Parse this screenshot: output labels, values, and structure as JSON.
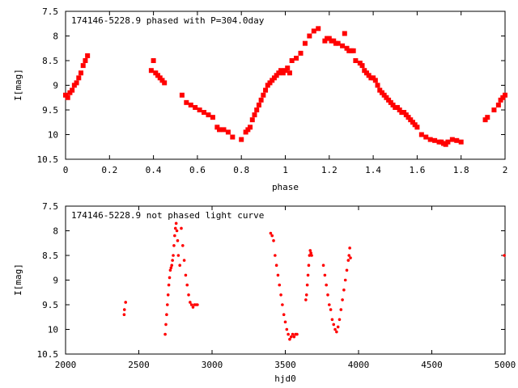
{
  "chart_data": [
    {
      "type": "scatter",
      "title": "174146-5228.9 phased with P=304.0day",
      "xlabel": "phase",
      "ylabel": "I[mag]",
      "xlim": [
        0,
        2
      ],
      "ylim": [
        10.5,
        7.5
      ],
      "y_inverted": true,
      "xticks": [
        "0",
        "0.2",
        "0.4",
        "0.6",
        "0.8",
        "1",
        "1.2",
        "1.4",
        "1.6",
        "1.8",
        "2"
      ],
      "yticks": [
        "7.5",
        "8",
        "8.5",
        "9",
        "9.5",
        "10",
        "10.5"
      ],
      "grid": false,
      "marker_color": "#ff0000",
      "series": [
        {
          "x": [
            0.0,
            0.01,
            0.02,
            0.03,
            0.04,
            0.05,
            0.06,
            0.07,
            0.08,
            0.09,
            0.1,
            0.39,
            0.4,
            0.41,
            0.42,
            0.43,
            0.44,
            0.45,
            0.53,
            0.55,
            0.57,
            0.59,
            0.61,
            0.63,
            0.65,
            0.67,
            0.69,
            0.7,
            0.72,
            0.74,
            0.76,
            0.8,
            0.82,
            0.83,
            0.84,
            0.85,
            0.86,
            0.87,
            0.88,
            0.89,
            0.9,
            0.91,
            0.92,
            0.93,
            0.94,
            0.95,
            0.96,
            0.97,
            0.98,
            0.99,
            1.0,
            1.01,
            1.02,
            1.03,
            1.05,
            1.07,
            1.09,
            1.11,
            1.13,
            1.15,
            1.18,
            1.19,
            1.2,
            1.21,
            1.22,
            1.23,
            1.24,
            1.26,
            1.27,
            1.28,
            1.29,
            1.3,
            1.31,
            1.32,
            1.34,
            1.35,
            1.36,
            1.37,
            1.38,
            1.39,
            1.4,
            1.41,
            1.42,
            1.43,
            1.44,
            1.45,
            1.46,
            1.47,
            1.48,
            1.49,
            1.5,
            1.51,
            1.52,
            1.53,
            1.54,
            1.55,
            1.56,
            1.57,
            1.58,
            1.59,
            1.6,
            1.62,
            1.64,
            1.66,
            1.68,
            1.7,
            1.71,
            1.72,
            1.73,
            1.74,
            1.76,
            1.78,
            1.8,
            1.91,
            1.92,
            1.95,
            1.97,
            1.98,
            1.99,
            2.0
          ],
          "y": [
            9.2,
            9.25,
            9.15,
            9.1,
            9.0,
            8.95,
            8.85,
            8.75,
            8.6,
            8.5,
            8.4,
            8.7,
            8.5,
            8.75,
            8.8,
            8.85,
            8.9,
            8.95,
            9.2,
            9.35,
            9.4,
            9.45,
            9.5,
            9.55,
            9.6,
            9.65,
            9.85,
            9.9,
            9.9,
            9.95,
            10.05,
            10.1,
            9.95,
            9.9,
            9.85,
            9.7,
            9.6,
            9.5,
            9.4,
            9.3,
            9.2,
            9.1,
            9.0,
            8.95,
            8.9,
            8.85,
            8.8,
            8.75,
            8.7,
            8.75,
            8.7,
            8.65,
            8.75,
            8.5,
            8.45,
            8.35,
            8.15,
            8.0,
            7.9,
            7.85,
            8.1,
            8.05,
            8.05,
            8.1,
            8.1,
            8.15,
            8.15,
            8.2,
            7.95,
            8.25,
            8.3,
            8.3,
            8.3,
            8.5,
            8.55,
            8.6,
            8.7,
            8.75,
            8.8,
            8.85,
            8.85,
            8.9,
            9.0,
            9.1,
            9.15,
            9.2,
            9.25,
            9.3,
            9.35,
            9.4,
            9.45,
            9.45,
            9.5,
            9.55,
            9.55,
            9.6,
            9.65,
            9.7,
            9.75,
            9.8,
            9.85,
            10.0,
            10.05,
            10.1,
            10.12,
            10.15,
            10.15,
            10.18,
            10.2,
            10.15,
            10.1,
            10.12,
            10.15,
            9.7,
            9.65,
            9.5,
            9.4,
            9.3,
            9.25,
            9.2
          ]
        }
      ]
    },
    {
      "type": "scatter",
      "title": "174146-5228.9 not phased light curve",
      "xlabel": "hjd0",
      "ylabel": "I[mag]",
      "xlim": [
        2000,
        5000
      ],
      "ylim": [
        10.5,
        7.5
      ],
      "y_inverted": true,
      "xticks": [
        "2000",
        "2500",
        "3000",
        "3500",
        "4000",
        "4500",
        "5000"
      ],
      "yticks": [
        "7.5",
        "8",
        "8.5",
        "9",
        "9.5",
        "10",
        "10.5"
      ],
      "grid": false,
      "marker_color": "#ff0000",
      "series": [
        {
          "x": [
            2400,
            2402,
            2410,
            2680,
            2685,
            2690,
            2695,
            2700,
            2705,
            2710,
            2715,
            2720,
            2725,
            2730,
            2735,
            2740,
            2745,
            2750,
            2755,
            2760,
            2765,
            2770,
            2780,
            2790,
            2800,
            2810,
            2820,
            2830,
            2840,
            2850,
            2860,
            2870,
            2880,
            2890,
            2900,
            3400,
            3410,
            3420,
            3430,
            3440,
            3450,
            3460,
            3470,
            3480,
            3490,
            3500,
            3510,
            3520,
            3530,
            3540,
            3550,
            3560,
            3570,
            3580,
            3640,
            3645,
            3650,
            3655,
            3660,
            3665,
            3670,
            3675,
            3680,
            3760,
            3770,
            3780,
            3790,
            3800,
            3810,
            3820,
            3830,
            3840,
            3850,
            3860,
            3870,
            3880,
            3890,
            3900,
            3910,
            3920,
            3930,
            3935,
            3940,
            3945,
            4995
          ],
          "y": [
            9.7,
            9.6,
            9.45,
            10.1,
            9.9,
            9.7,
            9.5,
            9.3,
            9.1,
            8.95,
            8.8,
            8.75,
            8.7,
            8.6,
            8.5,
            8.3,
            8.1,
            7.95,
            7.85,
            8.0,
            8.2,
            8.5,
            8.7,
            7.95,
            8.3,
            8.6,
            8.9,
            9.1,
            9.3,
            9.45,
            9.5,
            9.55,
            9.5,
            9.5,
            9.5,
            8.05,
            8.1,
            8.2,
            8.5,
            8.7,
            8.9,
            9.1,
            9.3,
            9.5,
            9.7,
            9.85,
            10.0,
            10.1,
            10.2,
            10.15,
            10.1,
            10.15,
            10.1,
            10.1,
            9.4,
            9.3,
            9.1,
            8.9,
            8.7,
            8.5,
            8.4,
            8.45,
            8.5,
            8.7,
            8.9,
            9.1,
            9.3,
            9.5,
            9.6,
            9.8,
            9.9,
            10.0,
            10.05,
            9.95,
            9.8,
            9.6,
            9.4,
            9.2,
            9.0,
            8.8,
            8.6,
            8.5,
            8.35,
            8.55,
            8.5
          ]
        }
      ]
    }
  ]
}
